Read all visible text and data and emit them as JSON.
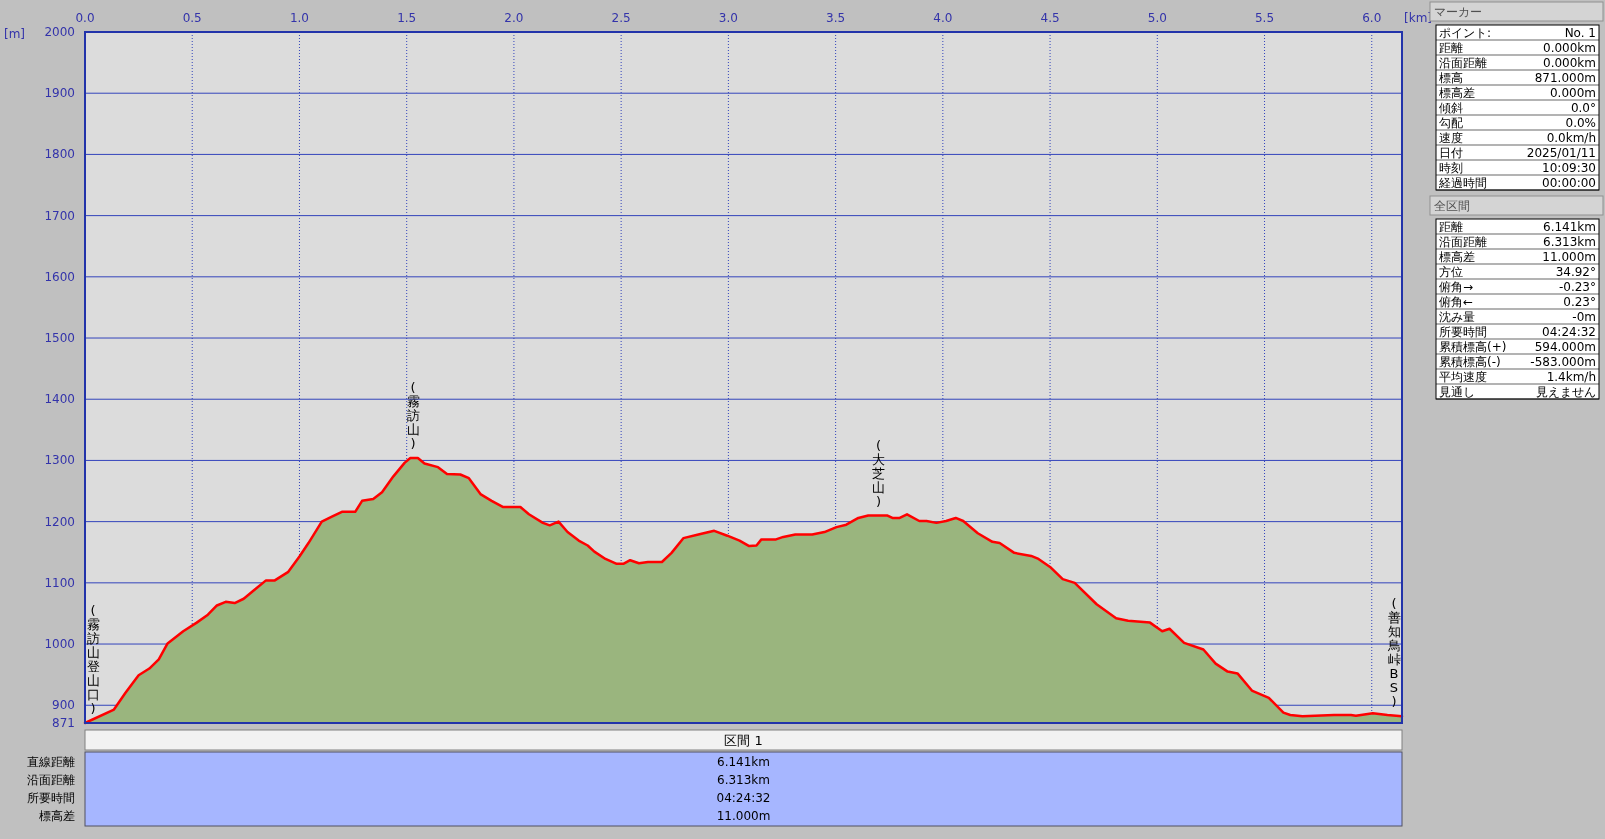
{
  "chart_data": [
    {
      "type": "area",
      "xlabel": "[km]",
      "ylabel": "[m]",
      "x": [
        0,
        0.135,
        0.188,
        0.25,
        0.3,
        0.344,
        0.385,
        0.458,
        0.521,
        0.573,
        0.615,
        0.656,
        0.698,
        0.74,
        0.792,
        0.844,
        0.885,
        0.948,
        1.0,
        1.042,
        1.104,
        1.156,
        1.198,
        1.26,
        1.292,
        1.344,
        1.385,
        1.438,
        1.49,
        1.517,
        1.552,
        1.583,
        1.646,
        1.688,
        1.75,
        1.79,
        1.844,
        1.896,
        1.948,
        2.03,
        2.07,
        2.135,
        2.167,
        2.208,
        2.25,
        2.302,
        2.344,
        2.375,
        2.427,
        2.479,
        2.51,
        2.542,
        2.583,
        2.625,
        2.69,
        2.735,
        2.79,
        2.86,
        2.934,
        2.995,
        3.052,
        3.097,
        3.131,
        3.154,
        3.222,
        3.256,
        3.312,
        3.391,
        3.448,
        3.504,
        3.55,
        3.606,
        3.652,
        3.742,
        3.765,
        3.799,
        3.833,
        3.89,
        3.924,
        3.97,
        4.015,
        4.06,
        4.095,
        4.163,
        4.231,
        4.265,
        4.333,
        4.412,
        4.446,
        4.5,
        4.559,
        4.615,
        4.717,
        4.808,
        4.864,
        4.966,
        5.023,
        5.057,
        5.125,
        5.215,
        5.272,
        5.328,
        5.374,
        5.441,
        5.52,
        5.588,
        5.62,
        5.677,
        5.824,
        5.903,
        5.926,
        6.005,
        6.073,
        6.141
      ],
      "series": [
        {
          "color": "#9ab57e",
          "values": [
            871,
            893,
            920,
            949,
            960,
            975,
            1001,
            1021,
            1035,
            1048,
            1063,
            1069,
            1067,
            1074,
            1089,
            1104,
            1104,
            1118,
            1143,
            1165,
            1200,
            1209,
            1216,
            1216,
            1234,
            1237,
            1248,
            1274,
            1296,
            1304,
            1304,
            1295,
            1289,
            1278,
            1277,
            1271,
            1245,
            1234,
            1224,
            1224,
            1212,
            1198,
            1194,
            1200,
            1183,
            1169,
            1161,
            1151,
            1139,
            1131,
            1131,
            1137,
            1132,
            1134,
            1134,
            1149,
            1173,
            1179,
            1185,
            1177,
            1169,
            1160,
            1161,
            1171,
            1171,
            1175,
            1179,
            1179,
            1183,
            1191,
            1195,
            1206,
            1210,
            1210,
            1206,
            1206,
            1212,
            1201,
            1201,
            1198,
            1201,
            1206,
            1201,
            1181,
            1167,
            1165,
            1149,
            1144,
            1139,
            1126,
            1106,
            1100,
            1065,
            1042,
            1038,
            1035,
            1021,
            1025,
            1002,
            991,
            968,
            955,
            952,
            924,
            912,
            888,
            884,
            882,
            884,
            884,
            883,
            887,
            884,
            882
          ]
        }
      ],
      "xlim": [
        0,
        6.141
      ],
      "ylim": [
        871,
        2000
      ],
      "xticks": [
        {
          "value": 0,
          "label": "0.0"
        },
        {
          "value": 0.5,
          "label": "0.5"
        },
        {
          "value": 1,
          "label": "1.0"
        },
        {
          "value": 1.5,
          "label": "1.5"
        },
        {
          "value": 2,
          "label": "2.0"
        },
        {
          "value": 2.5,
          "label": "2.5"
        },
        {
          "value": 3,
          "label": "3.0"
        },
        {
          "value": 3.5,
          "label": "3.5"
        },
        {
          "value": 4,
          "label": "4.0"
        },
        {
          "value": 4.5,
          "label": "4.5"
        },
        {
          "value": 5,
          "label": "5.0"
        },
        {
          "value": 5.5,
          "label": "5.5"
        },
        {
          "value": 6,
          "label": "6.0"
        }
      ],
      "yticks": [
        871,
        900,
        1000,
        1100,
        1200,
        1300,
        1400,
        1500,
        1600,
        1700,
        1800,
        1900,
        2000
      ],
      "grid": true,
      "annotations": [
        {
          "text": "(霧訪山登山口)",
          "x": 0,
          "y": 871
        },
        {
          "text": "(霧訪山)",
          "x": 1.53,
          "y": 1304
        },
        {
          "text": "(大芝山)",
          "x": 3.7,
          "y": 1210
        },
        {
          "text": "(善知鳥峠BS)",
          "x": 6.141,
          "y": 882
        }
      ]
    },
    {
      "type": "other",
      "title": "区間 1",
      "annotations": [
        "直線距離",
        "6.141km",
        "沿面距離",
        "6.313km",
        "所要時間",
        "04:24:32",
        "標高差",
        "11.000m"
      ]
    },
    {
      "type": "other",
      "title": "マーカー",
      "annotations": [
        "ポイント:",
        "No. 1",
        "距離",
        "0.000km",
        "沿面距離",
        "0.000km",
        "標高",
        "871.000m",
        "標高差",
        "0.000m",
        "傾斜",
        "0.0°",
        "勾配",
        "0.0%",
        "速度",
        "0.0km/h",
        "日付",
        "2025/01/11",
        "時刻",
        "10:09:30",
        "経過時間",
        "00:00:00"
      ]
    },
    {
      "type": "other",
      "title": "全区間",
      "annotations": [
        "距離",
        "6.141km",
        "沿面距離",
        "6.313km",
        "標高差",
        "11.000m",
        "方位",
        "34.92°",
        "俯角→",
        "-0.23°",
        "俯角←",
        "0.23°",
        "沈み量",
        "-0m",
        "所要時間",
        "04:24:32",
        "累積標高(+)",
        "594.000m",
        "累積標高(-)",
        "-583.000m",
        "平均速度",
        "1.4km/h",
        "見通し",
        "見えません"
      ]
    }
  ]
}
